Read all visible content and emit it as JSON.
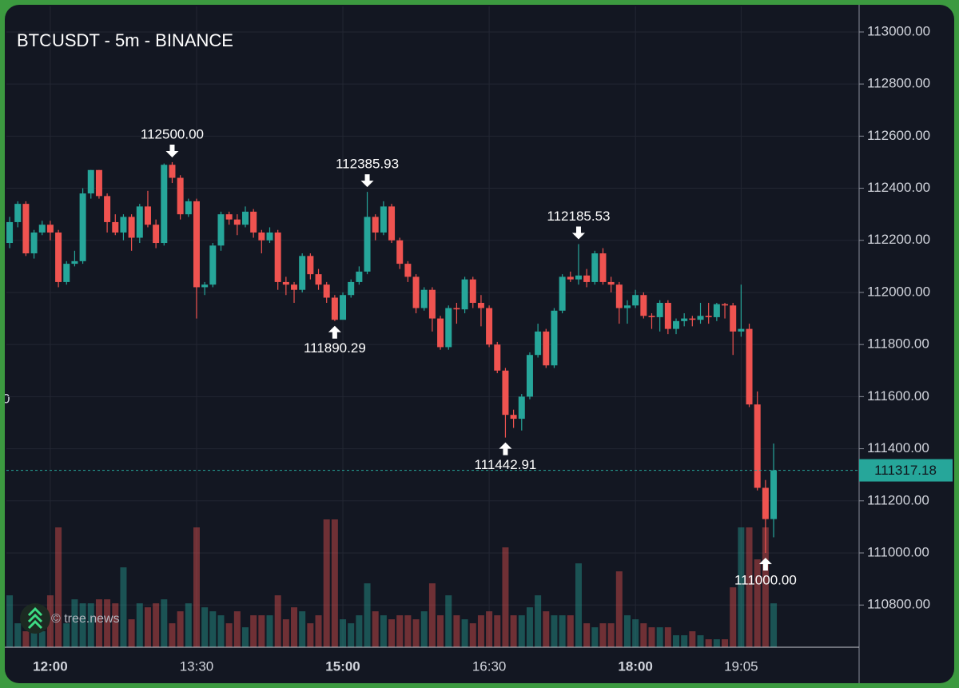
{
  "chart_data": {
    "type": "candlestick",
    "title": "BTCUSDT - 5m - BINANCE",
    "watermark": "© tree.news",
    "edge_label": "0",
    "up_color": "#26a69a",
    "down_color": "#ef5350",
    "grid": true,
    "categories": [
      null,
      null,
      null,
      null,
      null,
      "12:00",
      null,
      null,
      null,
      null,
      null,
      null,
      null,
      null,
      null,
      null,
      null,
      null,
      null,
      null,
      null,
      null,
      null,
      "13:30",
      null,
      null,
      null,
      null,
      null,
      null,
      null,
      null,
      null,
      null,
      null,
      null,
      null,
      null,
      null,
      null,
      null,
      "15:00",
      null,
      null,
      null,
      null,
      null,
      null,
      null,
      null,
      null,
      null,
      null,
      null,
      null,
      null,
      null,
      null,
      null,
      "16:30",
      null,
      null,
      null,
      null,
      null,
      null,
      null,
      null,
      null,
      null,
      null,
      null,
      null,
      null,
      null,
      null,
      null,
      "18:00",
      null,
      null,
      null,
      null,
      null,
      null,
      null,
      null,
      null,
      null,
      null,
      null,
      "19:05",
      null,
      null,
      null,
      null
    ],
    "candles": [
      [
        112190,
        112290,
        112170,
        112270
      ],
      [
        112270,
        112350,
        112250,
        112340
      ],
      [
        112340,
        112350,
        112140,
        112150
      ],
      [
        112150,
        112240,
        112130,
        112230
      ],
      [
        112230,
        112275,
        112220,
        112260
      ],
      [
        112260,
        112275,
        112200,
        112230
      ],
      [
        112230,
        112240,
        112020,
        112040
      ],
      [
        112040,
        112120,
        112030,
        112110
      ],
      [
        112110,
        112160,
        112100,
        112120
      ],
      [
        112120,
        112400,
        112110,
        112380
      ],
      [
        112380,
        112470,
        112360,
        112470
      ],
      [
        112470,
        112470,
        112360,
        112370
      ],
      [
        112370,
        112380,
        112230,
        112270
      ],
      [
        112270,
        112300,
        112220,
        112230
      ],
      [
        112230,
        112300,
        112200,
        112290
      ],
      [
        112290,
        112300,
        112160,
        112210
      ],
      [
        112210,
        112340,
        112190,
        112330
      ],
      [
        112330,
        112390,
        112250,
        112260
      ],
      [
        112260,
        112280,
        112170,
        112190
      ],
      [
        112190,
        112495,
        112180,
        112490
      ],
      [
        112490,
        112500,
        112420,
        112440
      ],
      [
        112440,
        112450,
        112280,
        112300
      ],
      [
        112300,
        112360,
        112290,
        112350
      ],
      [
        112350,
        112360,
        111900,
        112020
      ],
      [
        112020,
        112040,
        111990,
        112030
      ],
      [
        112030,
        112190,
        112020,
        112180
      ],
      [
        112180,
        112310,
        112160,
        112300
      ],
      [
        112300,
        112310,
        112260,
        112280
      ],
      [
        112280,
        112300,
        112220,
        112260
      ],
      [
        112260,
        112330,
        112250,
        112310
      ],
      [
        112310,
        112320,
        112210,
        112230
      ],
      [
        112230,
        112240,
        112150,
        112200
      ],
      [
        112200,
        112250,
        112190,
        112230
      ],
      [
        112230,
        112240,
        112010,
        112040
      ],
      [
        112040,
        112060,
        111990,
        112030
      ],
      [
        112030,
        112040,
        111960,
        112010
      ],
      [
        112010,
        112150,
        112000,
        112140
      ],
      [
        112140,
        112150,
        112050,
        112070
      ],
      [
        112070,
        112090,
        112010,
        112030
      ],
      [
        112030,
        112040,
        111960,
        111980
      ],
      [
        111980,
        111990,
        111890.29,
        111895
      ],
      [
        111895,
        112000,
        111900,
        111990
      ],
      [
        111990,
        112050,
        111980,
        112040
      ],
      [
        112040,
        112100,
        112030,
        112080
      ],
      [
        112080,
        112385.93,
        112070,
        112290
      ],
      [
        112290,
        112300,
        112200,
        112230
      ],
      [
        112230,
        112350,
        112220,
        112330
      ],
      [
        112330,
        112340,
        112190,
        112200
      ],
      [
        112200,
        112210,
        112090,
        112110
      ],
      [
        112110,
        112120,
        112040,
        112060
      ],
      [
        112060,
        112070,
        111920,
        111940
      ],
      [
        111940,
        112020,
        111930,
        112010
      ],
      [
        112010,
        112020,
        111850,
        111900
      ],
      [
        111900,
        111910,
        111780,
        111790
      ],
      [
        111790,
        111950,
        111780,
        111940
      ],
      [
        111940,
        111960,
        111880,
        111935
      ],
      [
        111935,
        112060,
        111920,
        112050
      ],
      [
        112050,
        112060,
        111940,
        111960
      ],
      [
        111960,
        111990,
        111870,
        111940
      ],
      [
        111940,
        111950,
        111790,
        111800
      ],
      [
        111800,
        111810,
        111690,
        111700
      ],
      [
        111700,
        111710,
        111442.91,
        111530
      ],
      [
        111530,
        111550,
        111480,
        111515
      ],
      [
        111515,
        111610,
        111470,
        111600
      ],
      [
        111600,
        111770,
        111590,
        111760
      ],
      [
        111760,
        111880,
        111750,
        111850
      ],
      [
        111850,
        111860,
        111710,
        111720
      ],
      [
        111720,
        111940,
        111710,
        111930
      ],
      [
        111930,
        112070,
        111920,
        112060
      ],
      [
        112060,
        112080,
        112040,
        112050
      ],
      [
        112050,
        112185.53,
        112030,
        112065
      ],
      [
        112065,
        112090,
        112020,
        112040
      ],
      [
        112040,
        112160,
        112030,
        112150
      ],
      [
        112150,
        112170,
        112030,
        112040
      ],
      [
        112040,
        112060,
        112000,
        112030
      ],
      [
        112030,
        112040,
        111880,
        111940
      ],
      [
        111940,
        111970,
        111880,
        111950
      ],
      [
        111950,
        112010,
        111940,
        111990
      ],
      [
        111990,
        112000,
        111900,
        111910
      ],
      [
        111910,
        111920,
        111860,
        111905
      ],
      [
        111905,
        111970,
        111850,
        111960
      ],
      [
        111960,
        111970,
        111840,
        111860
      ],
      [
        111860,
        111900,
        111840,
        111890
      ],
      [
        111890,
        111920,
        111870,
        111900
      ],
      [
        111900,
        111910,
        111870,
        111895
      ],
      [
        111895,
        111960,
        111880,
        111910
      ],
      [
        111910,
        111960,
        111880,
        111905
      ],
      [
        111905,
        111960,
        111890,
        111955
      ],
      [
        111955,
        111960,
        111900,
        111950
      ],
      [
        111950,
        111960,
        111760,
        111850
      ],
      [
        111850,
        112030,
        111830,
        111860
      ],
      [
        111860,
        111880,
        111560,
        111570
      ],
      [
        111570,
        111620,
        111240,
        111250
      ],
      [
        111250,
        111280,
        111000,
        111130
      ],
      [
        111130,
        111420,
        111060,
        111317.18
      ]
    ],
    "volumes": [
      65,
      30,
      20,
      20,
      20,
      65,
      150,
      30,
      60,
      55,
      55,
      60,
      60,
      55,
      100,
      35,
      55,
      50,
      55,
      60,
      30,
      45,
      55,
      150,
      50,
      45,
      40,
      30,
      45,
      25,
      40,
      40,
      40,
      65,
      35,
      50,
      45,
      30,
      40,
      160,
      160,
      35,
      30,
      40,
      80,
      45,
      40,
      35,
      40,
      40,
      35,
      45,
      80,
      40,
      65,
      40,
      35,
      30,
      40,
      45,
      40,
      125,
      40,
      40,
      50,
      65,
      45,
      40,
      40,
      40,
      105,
      30,
      25,
      30,
      30,
      95,
      40,
      35,
      30,
      25,
      25,
      25,
      15,
      15,
      20,
      15,
      10,
      10,
      10,
      75,
      150,
      150,
      110,
      150,
      55
    ],
    "y2lim": [
      0,
      802
    ],
    "ylim": [
      110638,
      113098
    ],
    "yticks": [
      {
        "value": 110800,
        "label": "110800.00"
      },
      {
        "value": 111000,
        "label": "111000.00"
      },
      {
        "value": 111200,
        "label": "111200.00"
      },
      {
        "value": 111400,
        "label": "111400.00"
      },
      {
        "value": 111600,
        "label": "111600.00"
      },
      {
        "value": 111800,
        "label": "111800.00"
      },
      {
        "value": 112000,
        "label": "112000.00"
      },
      {
        "value": 112200,
        "label": "112200.00"
      },
      {
        "value": 112400,
        "label": "112400.00"
      },
      {
        "value": 112600,
        "label": "112600.00"
      },
      {
        "value": 112800,
        "label": "112800.00"
      },
      {
        "value": 113000,
        "label": "113000.00"
      }
    ],
    "annotations": [
      {
        "value": 112500,
        "label": "112500.00"
      },
      {
        "value": 111890.29,
        "label": "111890.29"
      },
      {
        "value": 112385.93,
        "label": "112385.93"
      },
      {
        "value": 111442.91,
        "label": "111442.91"
      },
      {
        "value": 112185.53,
        "label": "112185.53"
      },
      {
        "value": 111000,
        "label": "111000.00"
      }
    ]
  }
}
